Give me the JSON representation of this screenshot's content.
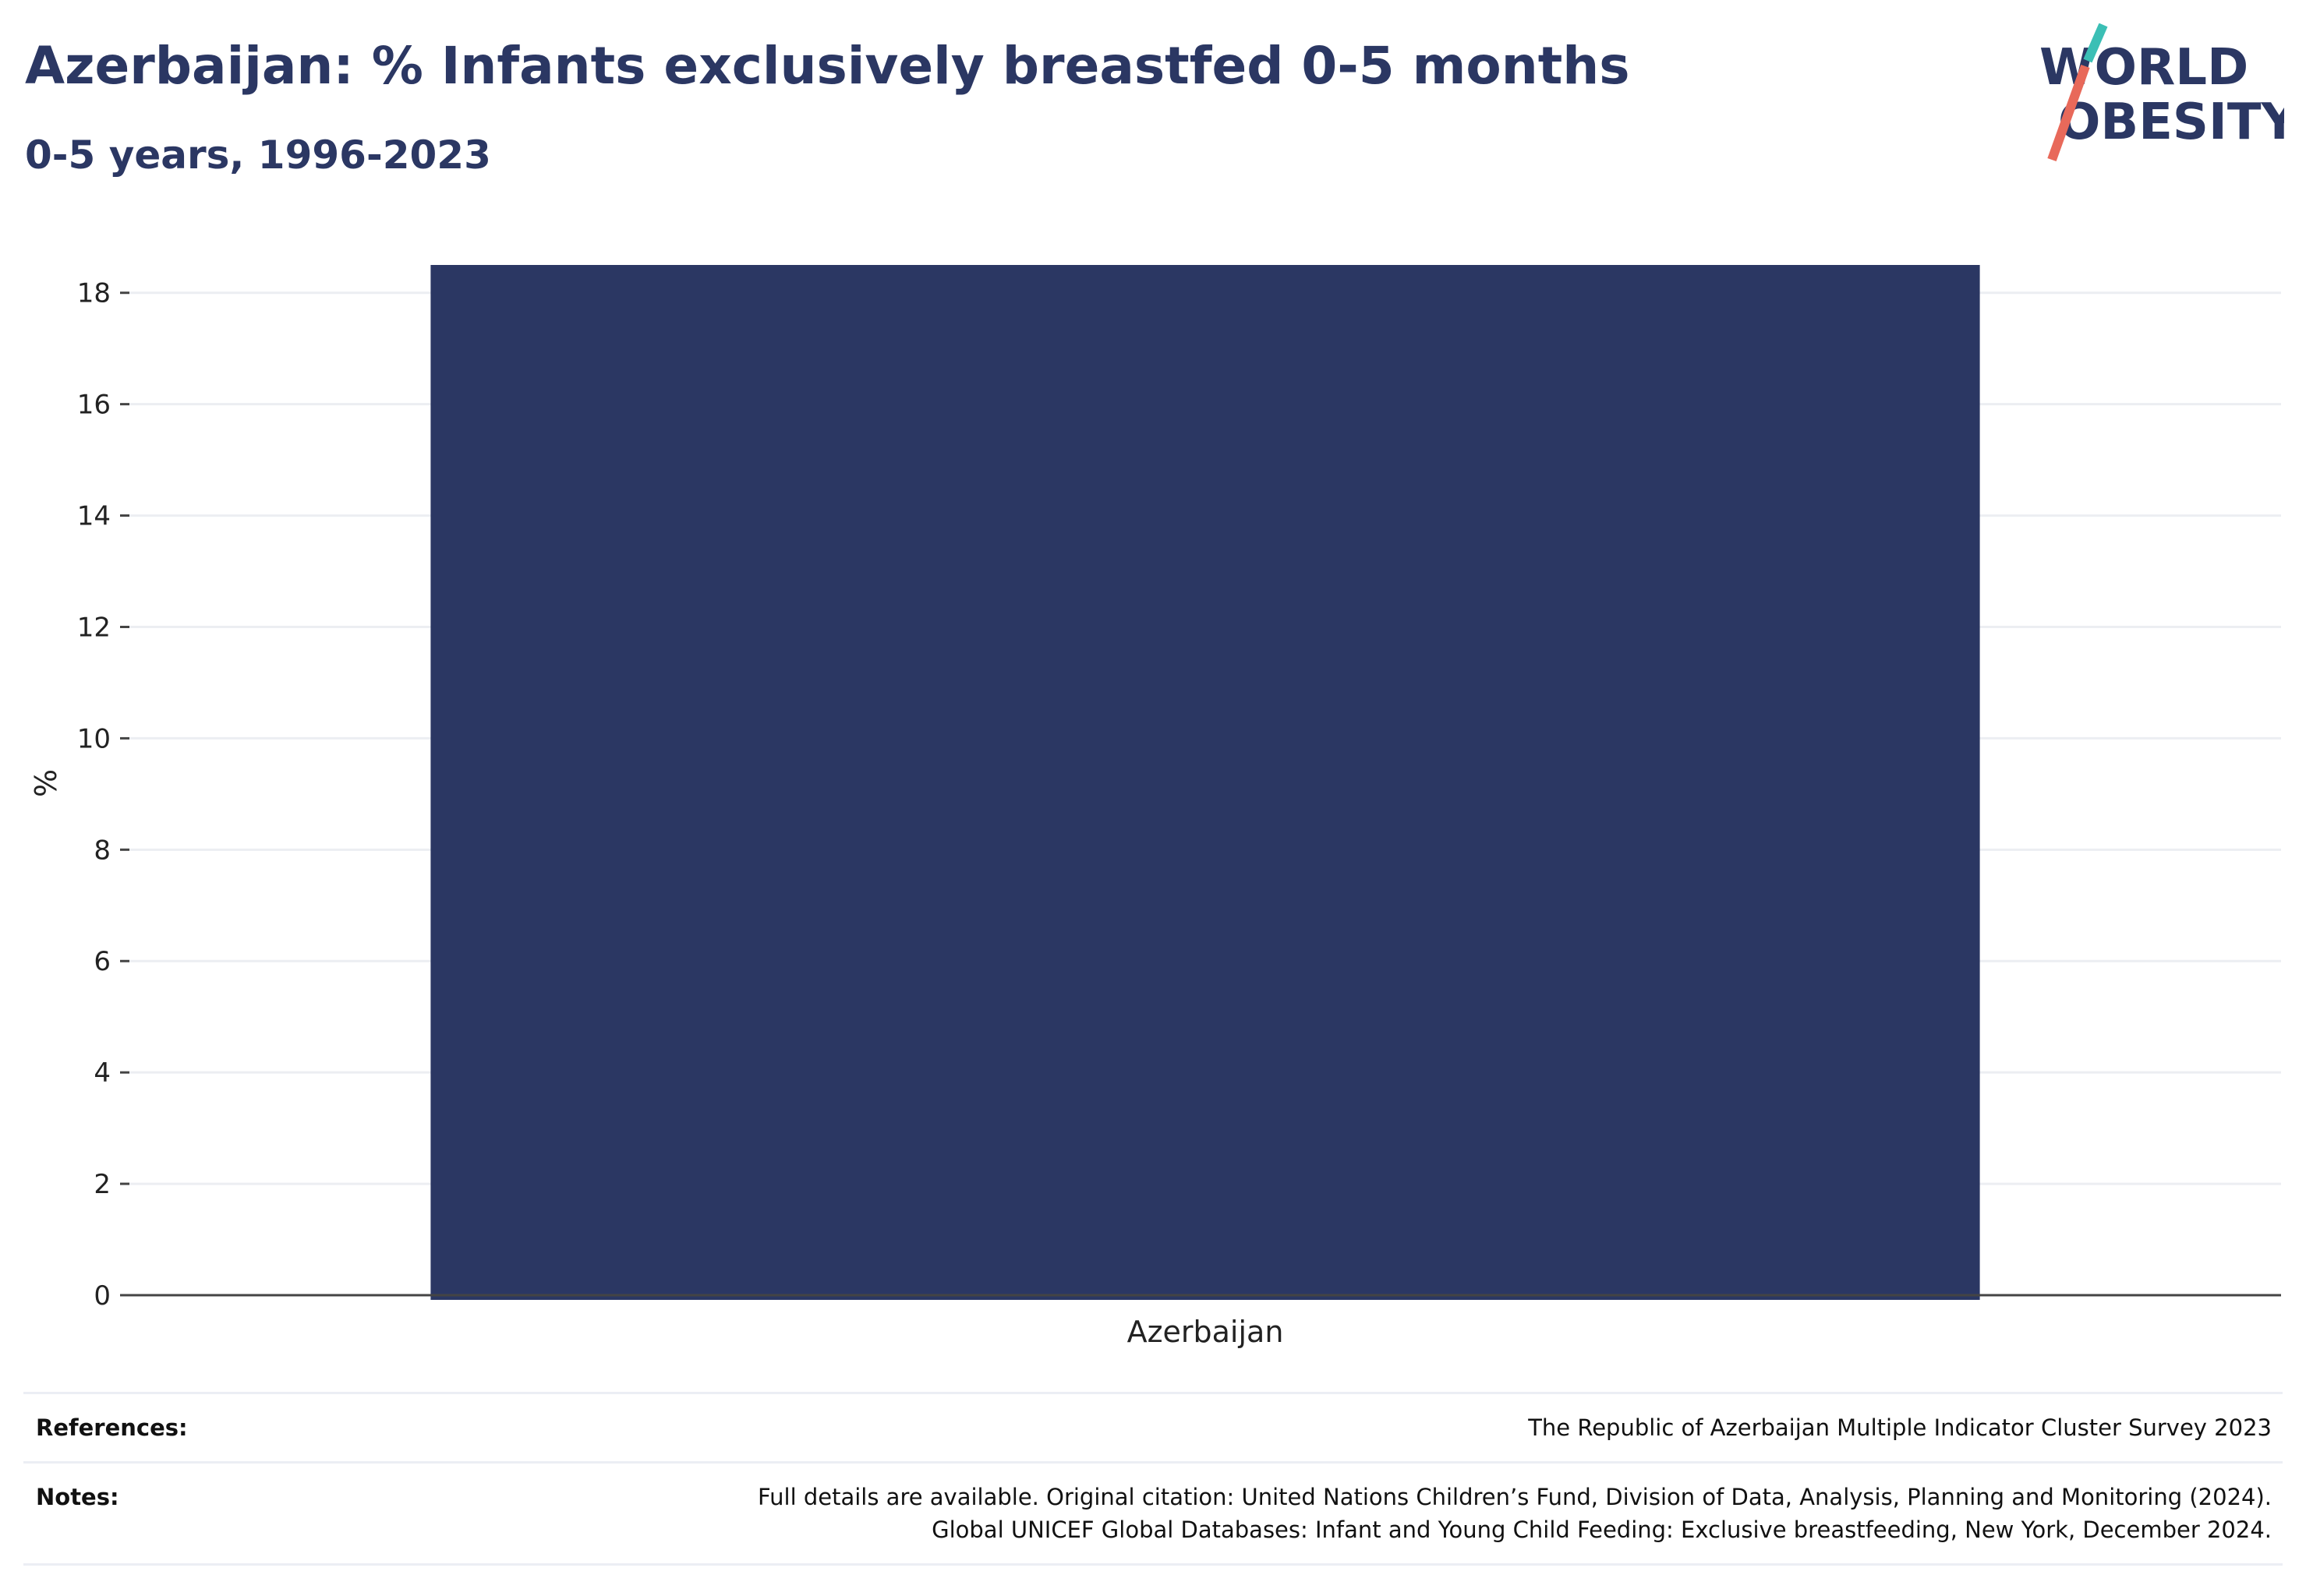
{
  "header": {
    "title": "Azerbaijan: % Infants exclusively breastfed 0-5 months",
    "subtitle": "0-5 years, 1996-2023"
  },
  "logo": {
    "line1": "WORLD",
    "line2": "OBESITY",
    "text_color": "#2b3763",
    "slash_top_color": "#3bbfb5",
    "slash_bottom_color": "#e8695a"
  },
  "chart_data": {
    "type": "bar",
    "categories": [
      "Azerbaijan"
    ],
    "values": [
      18.5
    ],
    "ylabel": "%",
    "xlabel": "",
    "ylim": [
      0,
      18.5
    ],
    "yticks": [
      0,
      2,
      4,
      6,
      8,
      10,
      12,
      14,
      16,
      18
    ],
    "grid": true,
    "bar_color": "#2b3763"
  },
  "footer": {
    "references_label": "References:",
    "references_text": "The Republic of Azerbaijan Multiple Indicator Cluster Survey 2023",
    "notes_label": "Notes:",
    "notes_lines": [
      "Full details are available. Original citation: United Nations Children’s Fund, Division of Data, Analysis, Planning and Monitoring (2024).",
      "Global UNICEF Global Databases: Infant and Young Child Feeding: Exclusive breastfeeding, New York, December 2024."
    ]
  }
}
